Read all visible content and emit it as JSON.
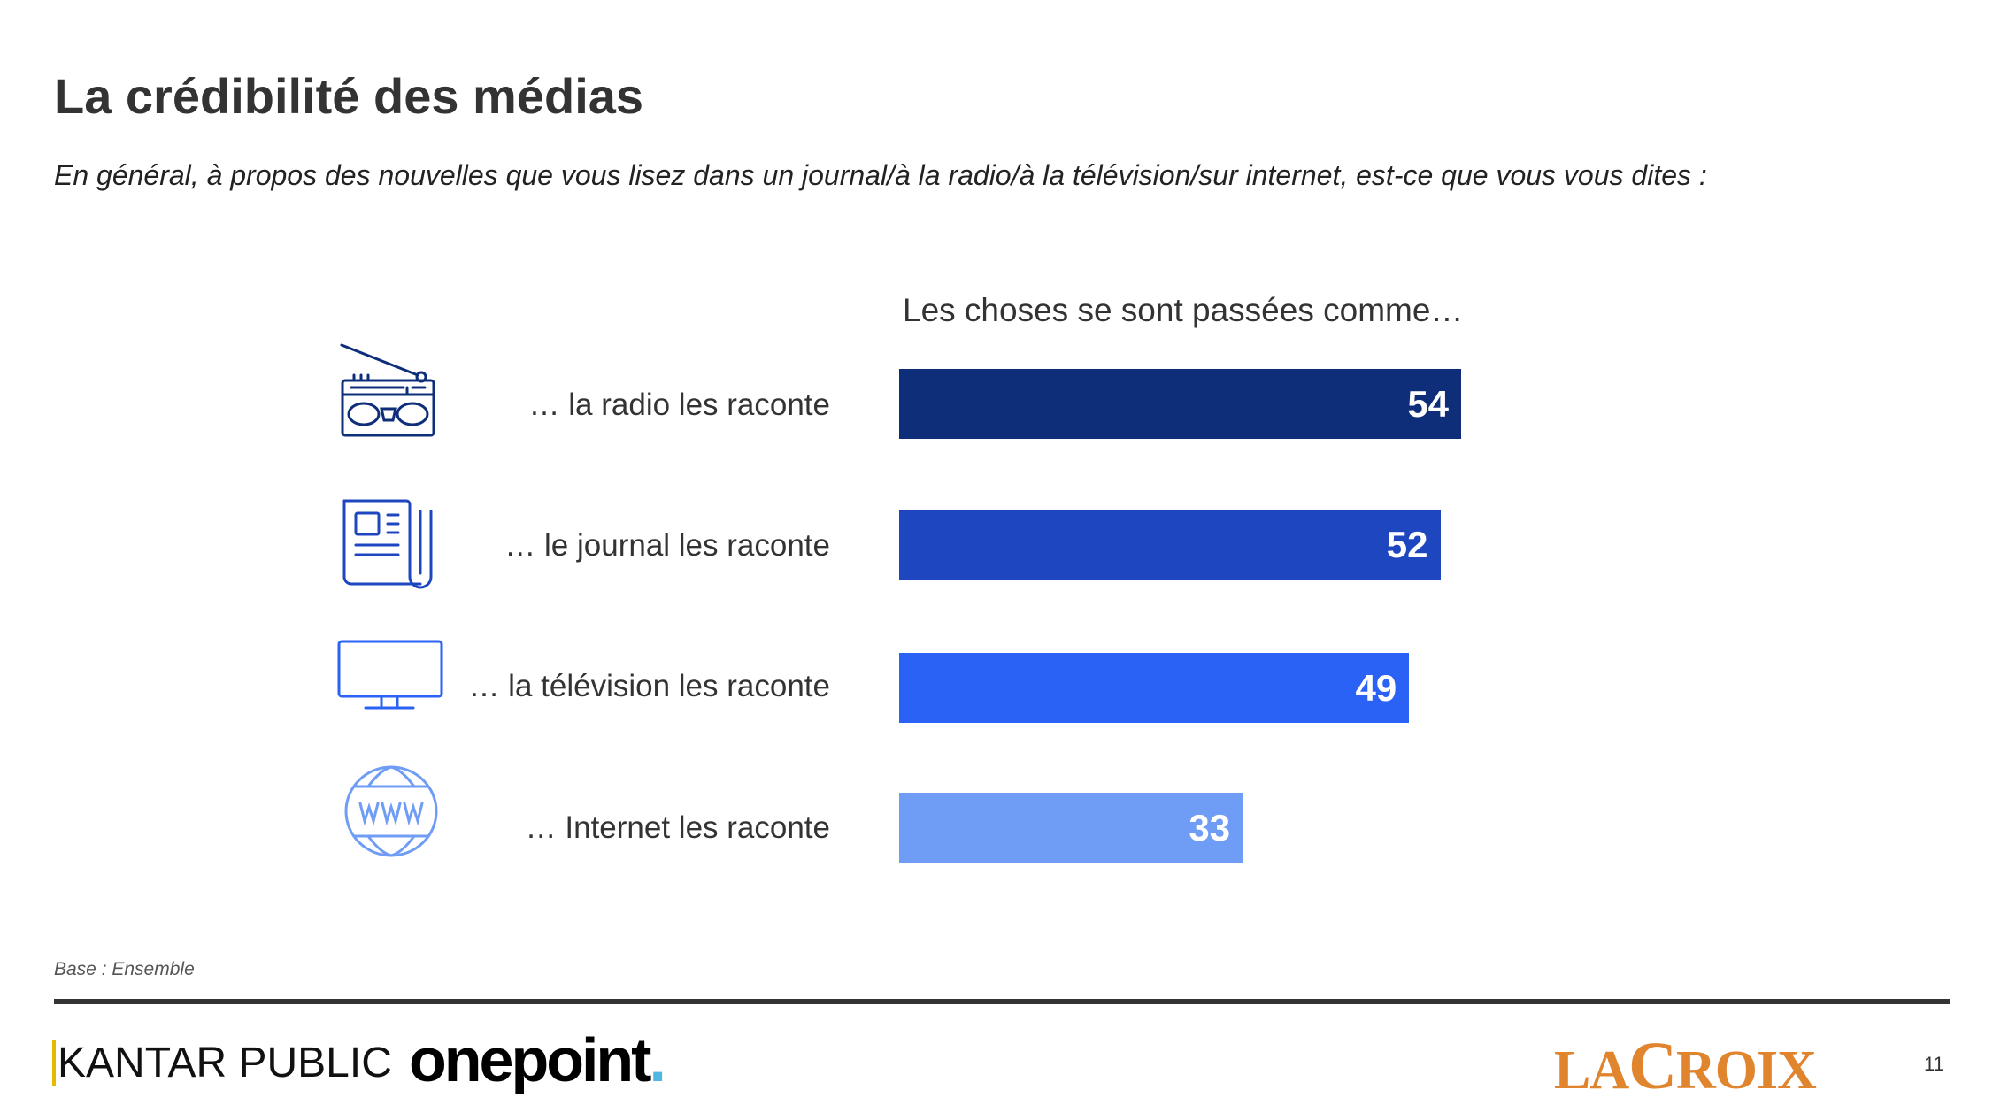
{
  "title": "La crédibilité des médias",
  "subtitle": "En général, à propos des nouvelles que vous lisez dans un journal/à la radio/à la télévision/sur internet, est-ce que vous vous dites :",
  "chart_data": {
    "type": "bar",
    "orientation": "horizontal",
    "title": "Les choses se sont passées comme…",
    "categories": [
      "… la radio les raconte",
      "… le journal les raconte",
      "… la télévision les raconte",
      "… Internet les raconte"
    ],
    "values": [
      54,
      52,
      49,
      33
    ],
    "colors": [
      "#0f2e7a",
      "#1e47bf",
      "#2962f5",
      "#6f9cf5"
    ],
    "icons": [
      "radio-icon",
      "newspaper-icon",
      "television-icon",
      "globe-www-icon"
    ],
    "xlim": [
      0,
      100
    ]
  },
  "footer": {
    "base": "Base : Ensemble",
    "logo_kantar": "KANTAR PUBLIC",
    "logo_onepoint": "onepoint",
    "logo_lacroix": "LA CROIX",
    "page_number": "11"
  }
}
